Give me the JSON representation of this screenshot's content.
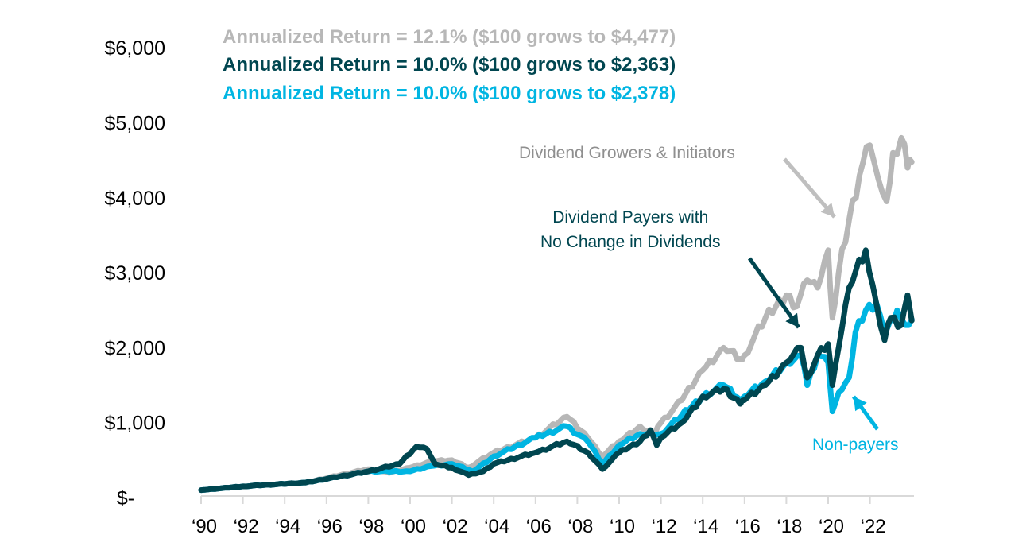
{
  "chart_data": {
    "type": "line",
    "title": "",
    "xlabel": "",
    "ylabel": "",
    "ylim": [
      0,
      6000
    ],
    "xlim": [
      1990,
      2024
    ],
    "grid": false,
    "y_ticks": [
      {
        "value": 0,
        "label": "$-"
      },
      {
        "value": 1000,
        "label": "$1,000"
      },
      {
        "value": 2000,
        "label": "$2,000"
      },
      {
        "value": 3000,
        "label": "$3,000"
      },
      {
        "value": 4000,
        "label": "$4,000"
      },
      {
        "value": 5000,
        "label": "$5,000"
      },
      {
        "value": 6000,
        "label": "$6,000"
      }
    ],
    "x_ticks": [
      {
        "value": 1990,
        "label": "‘90"
      },
      {
        "value": 1992,
        "label": "‘92"
      },
      {
        "value": 1994,
        "label": "‘94"
      },
      {
        "value": 1996,
        "label": "‘96"
      },
      {
        "value": 1998,
        "label": "‘98"
      },
      {
        "value": 2000,
        "label": "‘00"
      },
      {
        "value": 2002,
        "label": "‘02"
      },
      {
        "value": 2004,
        "label": "‘04"
      },
      {
        "value": 2006,
        "label": "‘06"
      },
      {
        "value": 2008,
        "label": "‘08"
      },
      {
        "value": 2010,
        "label": "‘10"
      },
      {
        "value": 2012,
        "label": "‘12"
      },
      {
        "value": 2014,
        "label": "‘14"
      },
      {
        "value": 2016,
        "label": "‘16"
      },
      {
        "value": 2018,
        "label": "‘18"
      },
      {
        "value": 2020,
        "label": "‘20"
      },
      {
        "value": 2022,
        "label": "‘22"
      }
    ],
    "series": [
      {
        "name": "Dividend Growers & Initiators",
        "color": "#b7b7b7",
        "legend": "Annualized Return = 12.1% ($100 grows to $4,477)",
        "x": [
          1990,
          1992,
          1995,
          1998,
          1999,
          2000,
          2001,
          2002,
          2002.8,
          2004,
          2006,
          2007.5,
          2008.5,
          2009.2,
          2010,
          2011,
          2011.7,
          2012,
          2013,
          2014,
          2015,
          2015.8,
          2016,
          2017,
          2018,
          2018.5,
          2019,
          2019.5,
          2020.0,
          2020.2,
          2020.5,
          2021,
          2021.5,
          2022.0,
          2022.4,
          2022.8,
          2023.1,
          2023.5,
          2023.8,
          2024
        ],
        "y": [
          100,
          150,
          200,
          380,
          330,
          400,
          480,
          500,
          400,
          600,
          800,
          1080,
          800,
          550,
          750,
          950,
          850,
          1000,
          1300,
          1700,
          2000,
          1850,
          1900,
          2400,
          2700,
          2550,
          2900,
          2800,
          3300,
          2400,
          3000,
          3700,
          4300,
          4700,
          4250,
          3950,
          4600,
          4800,
          4400,
          4477
        ]
      },
      {
        "name": "Dividend Payers with No Change in Dividends",
        "color": "#004650",
        "legend": "Annualized Return = 10.0% ($100 grows to $2,363)",
        "x": [
          1990,
          1992,
          1995,
          1998,
          1999.5,
          2000.3,
          2000.8,
          2001.2,
          2002,
          2002.8,
          2003.5,
          2004,
          2006,
          2007.5,
          2008.5,
          2009.2,
          2010,
          2011,
          2011.5,
          2011.8,
          2012,
          2013,
          2014,
          2015,
          2015.8,
          2016,
          2017,
          2018,
          2018.7,
          2019,
          2019.5,
          2020.0,
          2020.2,
          2020.5,
          2021,
          2021.8,
          2022.3,
          2022.7,
          2023,
          2023.5,
          2023.8,
          2024
        ],
        "y": [
          100,
          150,
          200,
          350,
          450,
          680,
          650,
          450,
          400,
          300,
          350,
          450,
          600,
          750,
          600,
          380,
          600,
          750,
          900,
          700,
          800,
          1000,
          1350,
          1450,
          1250,
          1300,
          1500,
          1800,
          2000,
          1600,
          1900,
          2050,
          1500,
          2000,
          2800,
          3300,
          2600,
          2100,
          2400,
          2300,
          2700,
          2363
        ]
      },
      {
        "name": "Non-payers",
        "color": "#00b5e2",
        "legend": "Annualized Return = 10.0% ($100 grows to $2,378)",
        "x": [
          1990,
          1992,
          1995,
          1998,
          2000,
          2001,
          2002,
          2003,
          2004,
          2006,
          2007.5,
          2008.5,
          2009.2,
          2010,
          2011,
          2012,
          2013,
          2014,
          2015,
          2015.8,
          2016,
          2017,
          2018,
          2018.7,
          2019,
          2019.5,
          2020.0,
          2020.2,
          2020.5,
          2021,
          2021.3,
          2021.8,
          2022.3,
          2022.7,
          2023.3,
          2023.7,
          2024
        ],
        "y": [
          100,
          150,
          200,
          350,
          350,
          420,
          450,
          350,
          550,
          800,
          950,
          750,
          450,
          700,
          850,
          850,
          1100,
          1350,
          1500,
          1300,
          1350,
          1550,
          1800,
          1900,
          1500,
          1900,
          1800,
          1150,
          1400,
          1600,
          2200,
          2500,
          2600,
          2200,
          2500,
          2300,
          2378
        ]
      }
    ],
    "annotations": [
      {
        "text": "Dividend Growers & Initiators",
        "color": "#8f8f8f"
      },
      {
        "text": "Dividend Payers with\nNo Change in Dividends",
        "color": "#004650"
      },
      {
        "text": "Non-payers",
        "color": "#00b5e2"
      }
    ]
  }
}
